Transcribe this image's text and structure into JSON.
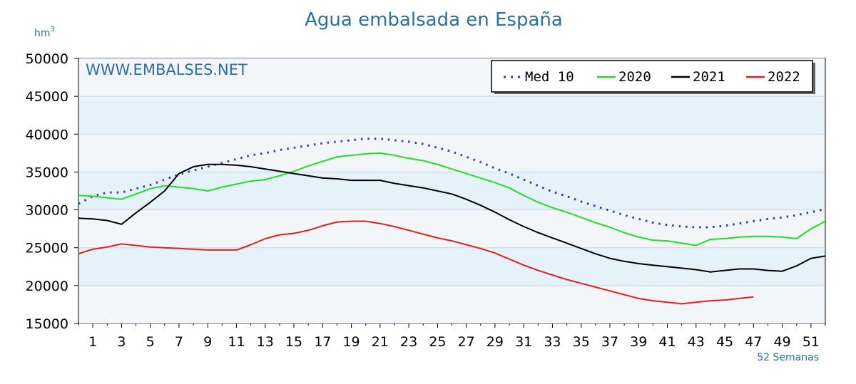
{
  "chart_data": {
    "type": "line",
    "title": "Agua embalsada en España",
    "ylabel": "hm",
    "ylabel_sup": "3",
    "xlabel": "52 Semanas",
    "watermark": "WWW.EMBALSES.NET",
    "ylim": [
      15000,
      50000
    ],
    "yticks": [
      "50000",
      "45000",
      "40000",
      "35000",
      "30000",
      "25000",
      "20000",
      "15000"
    ],
    "xlim": [
      0,
      52
    ],
    "xticks": [
      "1",
      "3",
      "5",
      "7",
      "9",
      "11",
      "13",
      "15",
      "17",
      "19",
      "21",
      "23",
      "25",
      "27",
      "29",
      "31",
      "33",
      "35",
      "37",
      "39",
      "41",
      "43",
      "45",
      "47",
      "49",
      "51"
    ],
    "grid": true,
    "legend_position": "top-right",
    "series": [
      {
        "name": "Med 10",
        "color": "#2e3cb8",
        "style": "dotted",
        "x": [
          0,
          1,
          2,
          3,
          4,
          5,
          6,
          7,
          8,
          9,
          10,
          11,
          12,
          13,
          14,
          15,
          16,
          17,
          18,
          19,
          20,
          21,
          22,
          23,
          24,
          25,
          26,
          27,
          28,
          29,
          30,
          31,
          32,
          33,
          34,
          35,
          36,
          37,
          38,
          39,
          40,
          41,
          42,
          43,
          44,
          45,
          46,
          47,
          48,
          49,
          50,
          51,
          52
        ],
        "values": [
          30800,
          31800,
          32300,
          32300,
          32800,
          33300,
          34000,
          34700,
          35200,
          35700,
          36200,
          36700,
          37200,
          37500,
          37900,
          38200,
          38500,
          38800,
          39000,
          39200,
          39400,
          39400,
          39200,
          39000,
          38700,
          38200,
          37700,
          37000,
          36300,
          35500,
          34800,
          34000,
          33200,
          32400,
          31800,
          31100,
          30500,
          29900,
          29300,
          28800,
          28300,
          28000,
          27800,
          27700,
          27700,
          27900,
          28200,
          28500,
          28800,
          29000,
          29300,
          29700,
          30100
        ]
      },
      {
        "name": "2020",
        "color": "#22dd22",
        "style": "solid",
        "x": [
          0,
          1,
          2,
          3,
          4,
          5,
          6,
          7,
          8,
          9,
          10,
          11,
          12,
          13,
          14,
          15,
          16,
          17,
          18,
          19,
          20,
          21,
          22,
          23,
          24,
          25,
          26,
          27,
          28,
          29,
          30,
          31,
          32,
          33,
          34,
          35,
          36,
          37,
          38,
          39,
          40,
          41,
          42,
          43,
          44,
          45,
          46,
          47,
          48,
          49,
          50,
          51,
          52
        ],
        "values": [
          31900,
          31800,
          31600,
          31400,
          32100,
          32800,
          33200,
          33000,
          32800,
          32500,
          33000,
          33400,
          33800,
          34000,
          34500,
          35100,
          35800,
          36400,
          37000,
          37200,
          37400,
          37500,
          37200,
          36800,
          36500,
          36000,
          35400,
          34800,
          34200,
          33600,
          32900,
          31900,
          31000,
          30300,
          29700,
          29000,
          28300,
          27700,
          27000,
          26400,
          26000,
          25900,
          25600,
          25300,
          26100,
          26200,
          26400,
          26500,
          26500,
          26400,
          26200,
          27500,
          28500
        ]
      },
      {
        "name": "2021",
        "color": "#000000",
        "style": "solid",
        "x": [
          0,
          1,
          2,
          3,
          4,
          5,
          6,
          7,
          8,
          9,
          10,
          11,
          12,
          13,
          14,
          15,
          16,
          17,
          18,
          19,
          20,
          21,
          22,
          23,
          24,
          25,
          26,
          27,
          28,
          29,
          30,
          31,
          32,
          33,
          34,
          35,
          36,
          37,
          38,
          39,
          40,
          41,
          42,
          43,
          44,
          45,
          46,
          47,
          48,
          49,
          50,
          51,
          52
        ],
        "values": [
          28900,
          28800,
          28600,
          28100,
          29600,
          31000,
          32500,
          34800,
          35700,
          36000,
          36000,
          35900,
          35700,
          35400,
          35100,
          34800,
          34500,
          34200,
          34100,
          33900,
          33900,
          33900,
          33500,
          33200,
          32900,
          32500,
          32100,
          31400,
          30600,
          29700,
          28700,
          27800,
          27000,
          26300,
          25600,
          24900,
          24200,
          23600,
          23200,
          22900,
          22700,
          22500,
          22300,
          22100,
          21800,
          22000,
          22200,
          22200,
          22000,
          21900,
          22600,
          23600,
          23900
        ]
      },
      {
        "name": "2022",
        "color": "#e02020",
        "style": "solid",
        "x": [
          0,
          1,
          2,
          3,
          4,
          5,
          6,
          7,
          8,
          9,
          10,
          11,
          12,
          13,
          14,
          15,
          16,
          17,
          18,
          19,
          20,
          21,
          22,
          23,
          24,
          25,
          26,
          27,
          28,
          29,
          30,
          31,
          32,
          33,
          34,
          35,
          36,
          37,
          38,
          39,
          40,
          41,
          42,
          43,
          44,
          45,
          46,
          47
        ],
        "values": [
          24200,
          24800,
          25100,
          25500,
          25300,
          25100,
          25000,
          24900,
          24800,
          24700,
          24700,
          24700,
          25400,
          26200,
          26700,
          26900,
          27300,
          27900,
          28400,
          28500,
          28500,
          28200,
          27800,
          27300,
          26800,
          26300,
          25900,
          25400,
          24900,
          24300,
          23500,
          22700,
          22000,
          21400,
          20800,
          20300,
          19800,
          19300,
          18800,
          18300,
          18000,
          17800,
          17600,
          17800,
          18000,
          18100,
          18300,
          18500
        ]
      }
    ]
  }
}
